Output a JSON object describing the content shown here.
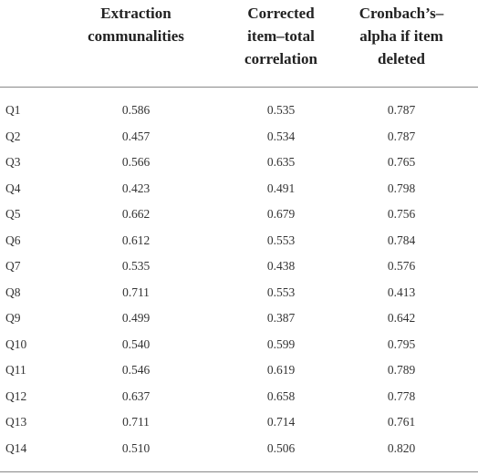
{
  "table": {
    "header": [
      [
        "Extraction",
        "communalities"
      ],
      [
        "Corrected",
        "item–total",
        "correlation"
      ],
      [
        "Cronbach’s–",
        "alpha if item",
        "deleted"
      ]
    ],
    "rows": [
      [
        "Q1",
        "0.586",
        "0.535",
        "0.787"
      ],
      [
        "Q2",
        "0.457",
        "0.534",
        "0.787"
      ],
      [
        "Q3",
        "0.566",
        "0.635",
        "0.765"
      ],
      [
        "Q4",
        "0.423",
        "0.491",
        "0.798"
      ],
      [
        "Q5",
        "0.662",
        "0.679",
        "0.756"
      ],
      [
        "Q6",
        "0.612",
        "0.553",
        "0.784"
      ],
      [
        "Q7",
        "0.535",
        "0.438",
        "0.576"
      ],
      [
        "Q8",
        "0.711",
        "0.553",
        "0.413"
      ],
      [
        "Q9",
        "0.499",
        "0.387",
        "0.642"
      ],
      [
        "Q10",
        "0.540",
        "0.599",
        "0.795"
      ],
      [
        "Q11",
        "0.546",
        "0.619",
        "0.789"
      ],
      [
        "Q12",
        "0.637",
        "0.658",
        "0.778"
      ],
      [
        "Q13",
        "0.711",
        "0.714",
        "0.761"
      ],
      [
        "Q14",
        "0.510",
        "0.506",
        "0.820"
      ]
    ]
  }
}
